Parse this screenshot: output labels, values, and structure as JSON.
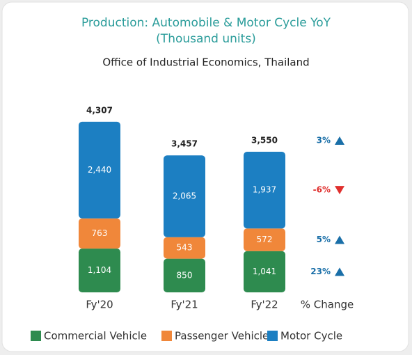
{
  "chart_data": {
    "type": "stacked_bar",
    "title": "Production: Automobile & Motor Cycle YoY",
    "units": "(Thousand units)",
    "subtitle": "Office of Industrial Economics, Thailand",
    "categories": [
      "Fy'20",
      "Fy'21",
      "Fy'22"
    ],
    "change_header": "% Change",
    "series": [
      {
        "name": "Commercial Vehicle",
        "color": "#2e8b4f",
        "values": [
          1104,
          850,
          1041
        ],
        "value_labels": [
          "1,104",
          "850",
          "1,041"
        ],
        "change": 23,
        "change_label": "23%"
      },
      {
        "name": "Passenger Vehicle",
        "color": "#f0873a",
        "values": [
          763,
          543,
          572
        ],
        "value_labels": [
          "763",
          "543",
          "572"
        ],
        "change": 5,
        "change_label": "5%"
      },
      {
        "name": "Motor Cycle",
        "color": "#1c7fc2",
        "values": [
          2440,
          2065,
          1937
        ],
        "value_labels": [
          "2,440",
          "2,065",
          "1,937"
        ],
        "change": -6,
        "change_label": "-6%"
      }
    ],
    "totals": [
      4307,
      3457,
      3550
    ],
    "total_labels": [
      "4,307",
      "3,457",
      "3,550"
    ],
    "total_change": 3,
    "total_change_label": "3%",
    "up_color": "#1a6fa8",
    "down_color": "#e0302e"
  }
}
